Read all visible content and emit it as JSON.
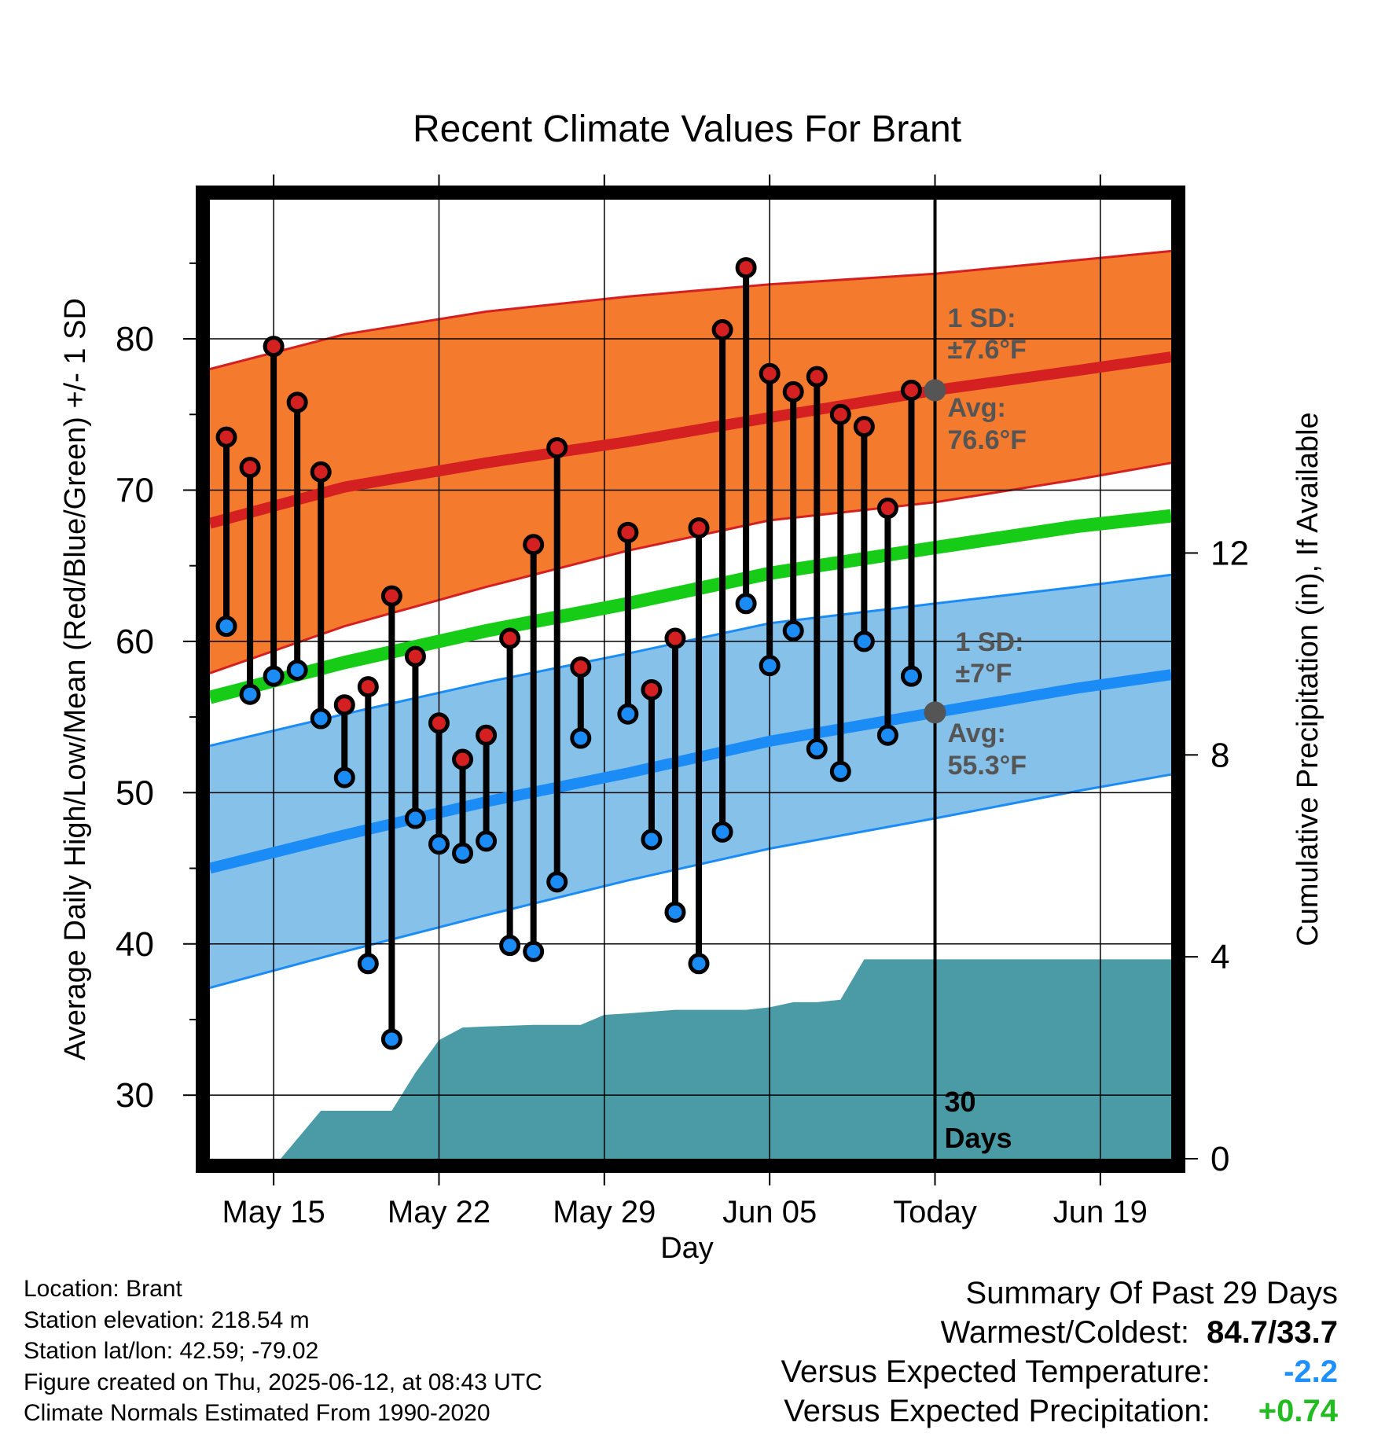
{
  "chart_data": {
    "type": "line",
    "title": "Recent Climate Values For Brant",
    "xlabel": "Day",
    "ylabel": "Average Daily High/Low/Mean (Red/Blue/Green) +/- 1 SD",
    "y2label": "Cumulative Precipitation (in), If Available",
    "ylim": [
      25.8,
      89.2
    ],
    "y2lim": [
      0,
      19.0
    ],
    "yticks": [
      "30",
      "40",
      "50",
      "60",
      "70",
      "80"
    ],
    "y2ticks": [
      "0",
      "4",
      "8",
      "12"
    ],
    "grid": true,
    "x_tick_labels": [
      "May 15",
      "May 22",
      "May 29",
      "Jun 05",
      "Today",
      "Jun 19"
    ],
    "x_tick_days": [
      15,
      22,
      29,
      36,
      43,
      50
    ],
    "today_day": 43,
    "xlim": [
      12.3,
      53.0
    ],
    "normals": {
      "day": [
        12.3,
        18,
        24,
        30,
        36,
        43,
        49,
        53
      ],
      "high_avg": [
        67.8,
        70.2,
        71.8,
        73.2,
        74.8,
        76.6,
        77.9,
        78.8
      ],
      "high_upper": [
        78.0,
        80.3,
        81.8,
        82.8,
        83.6,
        84.3,
        85.2,
        85.8
      ],
      "high_lower": [
        57.9,
        61.0,
        63.6,
        66.0,
        68.0,
        69.2,
        70.7,
        71.8
      ],
      "mean_avg": [
        56.3,
        58.6,
        60.7,
        62.5,
        64.5,
        66.2,
        67.6,
        68.3
      ],
      "low_avg": [
        45.0,
        47.2,
        49.4,
        51.3,
        53.4,
        55.3,
        56.9,
        57.8
      ],
      "low_upper": [
        53.1,
        55.2,
        57.3,
        59.2,
        61.2,
        62.5,
        63.6,
        64.4
      ],
      "low_lower": [
        37.1,
        39.5,
        41.9,
        44.2,
        46.3,
        48.3,
        50.1,
        51.2
      ]
    },
    "daily": [
      {
        "day": 13,
        "high": 73.5,
        "low": 61.0
      },
      {
        "day": 14,
        "high": 71.5,
        "low": 56.5
      },
      {
        "day": 15,
        "high": 79.5,
        "low": 57.7
      },
      {
        "day": 16,
        "high": 75.8,
        "low": 58.1
      },
      {
        "day": 17,
        "high": 71.2,
        "low": 54.9
      },
      {
        "day": 18,
        "high": 55.8,
        "low": 51.0
      },
      {
        "day": 19,
        "high": 57.0,
        "low": 38.7
      },
      {
        "day": 20,
        "high": 63.0,
        "low": 33.7
      },
      {
        "day": 21,
        "high": 59.0,
        "low": 48.3
      },
      {
        "day": 22,
        "high": 54.6,
        "low": 46.6
      },
      {
        "day": 23,
        "high": 52.2,
        "low": 46.0
      },
      {
        "day": 24,
        "high": 53.8,
        "low": 46.8
      },
      {
        "day": 25,
        "high": 60.2,
        "low": 39.9
      },
      {
        "day": 26,
        "high": 66.4,
        "low": 39.5
      },
      {
        "day": 27,
        "high": 72.8,
        "low": 44.1
      },
      {
        "day": 28,
        "high": 58.3,
        "low": 53.6
      },
      {
        "day": 30,
        "high": 67.2,
        "low": 55.2
      },
      {
        "day": 31,
        "high": 56.8,
        "low": 46.9
      },
      {
        "day": 32,
        "high": 60.2,
        "low": 42.1
      },
      {
        "day": 33,
        "high": 67.5,
        "low": 38.7
      },
      {
        "day": 34,
        "high": 80.6,
        "low": 47.4
      },
      {
        "day": 35,
        "high": 84.7,
        "low": 62.5
      },
      {
        "day": 36,
        "high": 77.7,
        "low": 58.4
      },
      {
        "day": 37,
        "high": 76.5,
        "low": 60.7
      },
      {
        "day": 38,
        "high": 77.5,
        "low": 52.9
      },
      {
        "day": 39,
        "high": 75.0,
        "low": 51.4
      },
      {
        "day": 40,
        "high": 74.2,
        "low": 60.0
      },
      {
        "day": 41,
        "high": 68.8,
        "low": 53.8
      },
      {
        "day": 42,
        "high": 76.6,
        "low": 57.7
      }
    ],
    "precip_cumulative": {
      "day": [
        12.3,
        15.3,
        17.0,
        20.0,
        21.0,
        22.0,
        23.0,
        24.0,
        26.0,
        28.0,
        29.0,
        30.0,
        32.0,
        34.0,
        35.0,
        36.0,
        37.0,
        38.0,
        39.0,
        40.0,
        53.0
      ],
      "value": [
        0,
        0,
        0.95,
        0.95,
        1.7,
        2.35,
        2.6,
        2.62,
        2.65,
        2.65,
        2.85,
        2.88,
        2.95,
        2.95,
        2.95,
        3.0,
        3.1,
        3.1,
        3.15,
        3.95,
        3.95
      ]
    },
    "annotations": {
      "high_sd_label": "1 SD:",
      "high_sd_value": "±7.6°F",
      "high_avg_label": "Avg:",
      "high_avg_value": "76.6°F",
      "high_avg_today": 76.6,
      "low_sd_label": "1 SD:",
      "low_sd_value": "±7°F",
      "low_avg_label": "Avg:",
      "low_avg_value": "55.3°F",
      "low_avg_today": 55.3,
      "period_number": "30",
      "period_unit": "Days"
    },
    "colors": {
      "high_band": "#f47a2e",
      "high_line": "#d42020",
      "mean_line": "#16cc16",
      "low_band": "#86c1ea",
      "low_line": "#1b8cf5",
      "precip": "#4a9ba6",
      "marker_high": "#d42020",
      "marker_low": "#1b8cf5",
      "annotation": "#555555"
    }
  },
  "footer": {
    "location": "Location: Brant",
    "elevation": "Station elevation: 218.54 m",
    "latlon": "Station lat/lon: 42.59; -79.02",
    "created": "Figure created on Thu, 2025-06-12, at 08:43 UTC",
    "normals": "Climate Normals Estimated From 1990-2020"
  },
  "summary": {
    "title": "Summary Of Past 29 Days",
    "warm_cold_label": "Warmest/Coldest:",
    "warm_cold_value": "84.7/33.7",
    "temp_label": "Versus Expected Temperature:",
    "temp_value": "-2.2",
    "precip_label": "Versus Expected Precipitation:",
    "precip_value": "+0.74"
  }
}
